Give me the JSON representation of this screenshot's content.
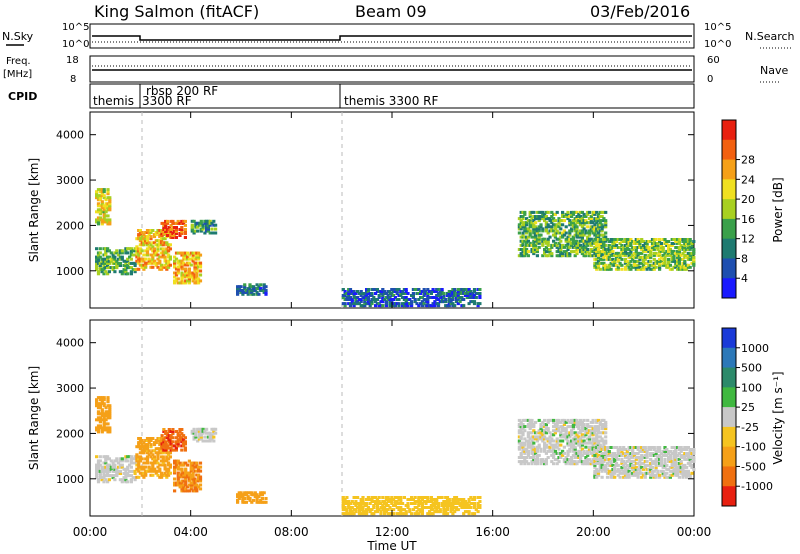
{
  "header": {
    "station": "King Salmon (fitACF)",
    "beam": "Beam 09",
    "date": "03/Feb/2016"
  },
  "strips": {
    "nsky_label": "N.Sky",
    "nsky_top": "10^5",
    "nsky_bottom": "10^0",
    "nsearch_label": "N.Search",
    "freq_label": "Freq.",
    "freq_unit": "[MHz]",
    "freq_top": "18",
    "freq_bottom": "8",
    "nave_label": "Nave",
    "nave_top": "60",
    "nave_bottom": "0",
    "cpid_label": "CPID",
    "cpid_segments": [
      {
        "name": "themis 3300 RF",
        "start": 0.0,
        "end": 1.8
      },
      {
        "name": "rbsp 200 RF",
        "start": 1.8,
        "end": 10.0
      },
      {
        "name": "themis 3300 RF",
        "start": 10.0,
        "end": 24.0
      }
    ],
    "cpid_text_1": "themis",
    "cpid_text_2": "3300 RF",
    "cpid_text_3": "rbsp 200 RF",
    "cpid_text_4": "themis 3300 RF"
  },
  "chart_data": [
    {
      "type": "heatmap",
      "parameter": "power",
      "ylabel": "Slant Range [km]",
      "xlabel": "Time UT",
      "xlim_hours": [
        0,
        24
      ],
      "ylim_km": [
        180,
        4500
      ],
      "xticks": [
        "00:00",
        "04:00",
        "08:00",
        "12:00",
        "16:00",
        "20:00",
        "00:00"
      ],
      "yticks": [
        "1000",
        "2000",
        "3000",
        "4000"
      ],
      "colorbar": {
        "label": "Power [dB]",
        "ticks": [
          "4",
          "8",
          "12",
          "16",
          "20",
          "24",
          "28"
        ],
        "range": [
          0,
          30
        ],
        "colors": [
          "#1a1aff",
          "#1e4fb0",
          "#1e7a70",
          "#3aa04a",
          "#a8d020",
          "#f0e020",
          "#f5a018",
          "#f26010",
          "#e82010"
        ]
      },
      "regions": [
        {
          "t0": 0.2,
          "t1": 1.8,
          "r0": 900,
          "r1": 1500,
          "level": 12
        },
        {
          "t0": 0.2,
          "t1": 0.8,
          "r0": 2000,
          "r1": 2800,
          "level": 18
        },
        {
          "t0": 1.8,
          "t1": 3.2,
          "r0": 1000,
          "r1": 1900,
          "level": 20
        },
        {
          "t0": 2.8,
          "t1": 3.8,
          "r0": 1700,
          "r1": 2100,
          "level": 26
        },
        {
          "t0": 3.3,
          "t1": 4.4,
          "r0": 700,
          "r1": 1400,
          "level": 20
        },
        {
          "t0": 4.0,
          "t1": 5.0,
          "r0": 1800,
          "r1": 2100,
          "level": 10
        },
        {
          "t0": 5.8,
          "t1": 7.0,
          "r0": 450,
          "r1": 700,
          "level": 8
        },
        {
          "t0": 10.0,
          "t1": 15.5,
          "r0": 200,
          "r1": 600,
          "level": 6
        },
        {
          "t0": 17.0,
          "t1": 20.5,
          "r0": 1300,
          "r1": 2300,
          "level": 12
        },
        {
          "t0": 20.0,
          "t1": 24.0,
          "r0": 1000,
          "r1": 1700,
          "level": 14
        }
      ]
    },
    {
      "type": "heatmap",
      "parameter": "velocity",
      "ylabel": "Slant Range [km]",
      "xlabel": "Time UT",
      "xlim_hours": [
        0,
        24
      ],
      "ylim_km": [
        180,
        4500
      ],
      "xticks": [
        "00:00",
        "04:00",
        "08:00",
        "12:00",
        "16:00",
        "20:00",
        "00:00"
      ],
      "yticks": [
        "1000",
        "2000",
        "3000",
        "4000"
      ],
      "colorbar": {
        "label": "Velocity [m s⁻¹]",
        "ticks": [
          "1000",
          "500",
          "100",
          "25",
          "-25",
          "-100",
          "-500",
          "-1000"
        ],
        "range": [
          -1000,
          1000
        ],
        "colors": [
          "#1a3ad8",
          "#2c78b8",
          "#2c8a6a",
          "#40b840",
          "#c8c8c8",
          "#f5c420",
          "#f5a018",
          "#f07010",
          "#e82010"
        ]
      },
      "regions": [
        {
          "t0": 0.2,
          "t1": 1.8,
          "r0": 900,
          "r1": 1500,
          "level": 0
        },
        {
          "t0": 0.2,
          "t1": 0.8,
          "r0": 2000,
          "r1": 2800,
          "level": -300
        },
        {
          "t0": 1.8,
          "t1": 3.2,
          "r0": 1000,
          "r1": 1900,
          "level": -150
        },
        {
          "t0": 2.8,
          "t1": 3.8,
          "r0": 1600,
          "r1": 2100,
          "level": -800
        },
        {
          "t0": 3.3,
          "t1": 4.4,
          "r0": 700,
          "r1": 1400,
          "level": -500
        },
        {
          "t0": 4.0,
          "t1": 5.0,
          "r0": 1800,
          "r1": 2100,
          "level": 0
        },
        {
          "t0": 5.8,
          "t1": 7.0,
          "r0": 450,
          "r1": 700,
          "level": -300
        },
        {
          "t0": 10.0,
          "t1": 15.5,
          "r0": 200,
          "r1": 600,
          "level": -60
        },
        {
          "t0": 17.0,
          "t1": 20.5,
          "r0": 1300,
          "r1": 2300,
          "level": 0
        },
        {
          "t0": 20.0,
          "t1": 24.0,
          "r0": 1000,
          "r1": 1700,
          "level": 0
        }
      ]
    }
  ]
}
